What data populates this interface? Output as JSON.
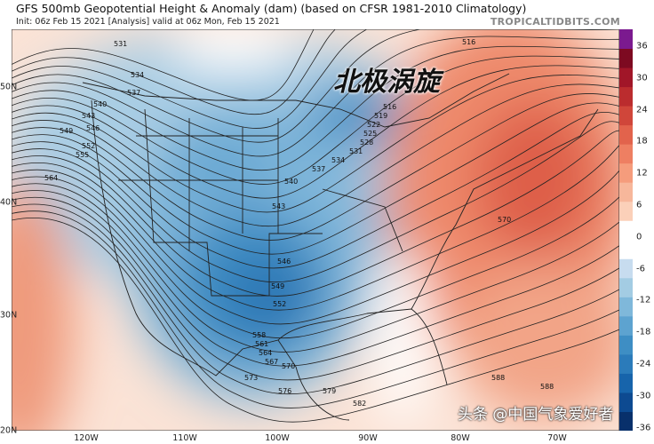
{
  "header": {
    "title": "GFS 500mb Geopotential Height & Anomaly (dam) (based on CFSR 1981-2010 Climatology)",
    "subtitle": "Init: 06z Feb 15 2021   [Analysis]   valid at 06z Mon, Feb 15 2021",
    "brand": "TROPICALTIDBITS.COM"
  },
  "map": {
    "longitude_labels": [
      "120W",
      "110W",
      "100W",
      "90W",
      "80W",
      "70W"
    ],
    "latitude_labels": [
      "50N",
      "40N",
      "30N",
      "20N"
    ],
    "contour_labels": [
      "531",
      "534",
      "537",
      "540",
      "543",
      "546",
      "549",
      "552",
      "555",
      "564",
      "516",
      "516",
      "519",
      "522",
      "525",
      "528",
      "531",
      "534",
      "537",
      "540",
      "543",
      "546",
      "549",
      "552",
      "558",
      "561",
      "564",
      "567",
      "570",
      "573",
      "576",
      "579",
      "582",
      "570",
      "588",
      "588"
    ],
    "annotation": "北极涡旋",
    "watermark": "头条 @中国气象爱好者"
  },
  "colorbar": {
    "ticks": [
      "36",
      "30",
      "24",
      "18",
      "12",
      "6",
      "0",
      "-6",
      "-12",
      "-18",
      "-24",
      "-30",
      "-36"
    ],
    "colors": [
      "#08306b",
      "#0d4a91",
      "#1764ab",
      "#2b7bba",
      "#3e8ec4",
      "#5da3d0",
      "#7fb8da",
      "#a3cce3",
      "#c7dcef",
      "#ffffff",
      "#ffffff",
      "#fbd0b9",
      "#f7b79b",
      "#f59c7c",
      "#ee7f62",
      "#e2634c",
      "#d0463a",
      "#bb2c2e",
      "#a11628",
      "#7d0a21",
      "#7b1a8f"
    ]
  }
}
